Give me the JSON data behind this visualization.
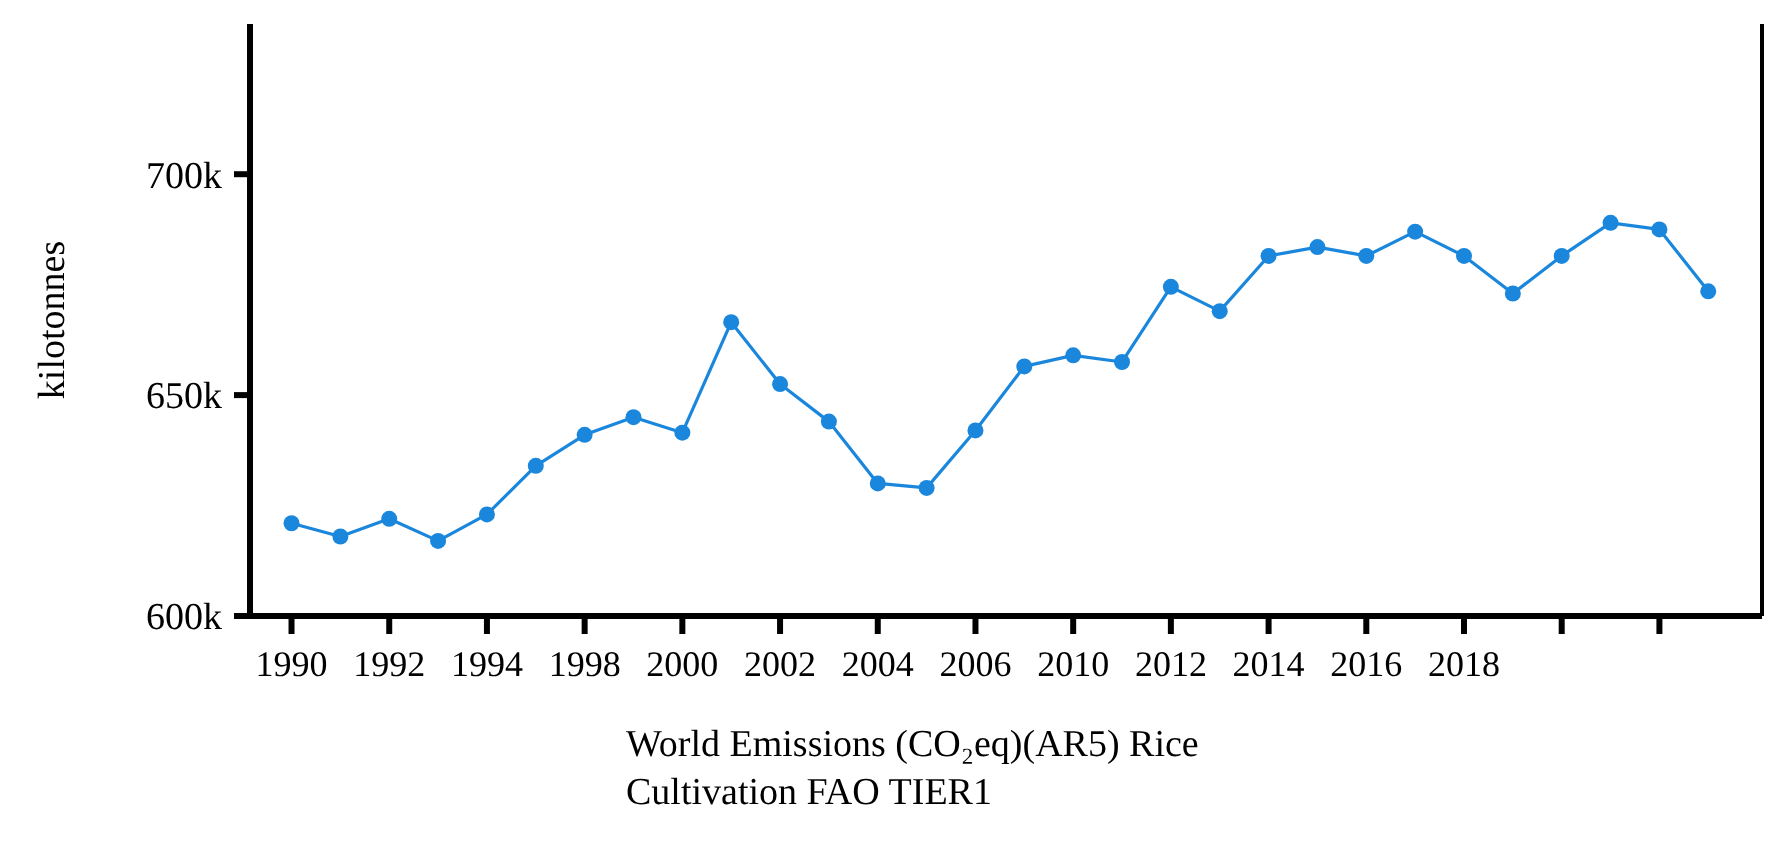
{
  "chart_data": {
    "type": "line",
    "xlabel": "World Emissions (CO₂eq)(AR5) Rice Cultivation FAO TIER1",
    "ylabel": "kilotonnes",
    "categories": [
      "1990",
      null,
      "1992",
      null,
      "1994",
      null,
      "1998",
      null,
      "2000",
      null,
      "2002",
      null,
      "2004",
      null,
      "2006",
      null,
      "2010",
      null,
      "2012",
      null,
      "2014",
      null,
      "2016",
      null,
      "2018",
      null,
      null,
      null,
      null,
      null
    ],
    "series": [
      {
        "color": "#1a87dc",
        "values": [
          621000,
          618000,
          622000,
          617000,
          623000,
          634000,
          641000,
          645000,
          641500,
          666500,
          652500,
          644000,
          630000,
          629000,
          642000,
          656500,
          659000,
          657500,
          674500,
          669000,
          681500,
          683500,
          681500,
          687000,
          681500,
          673000,
          681500,
          689000,
          687500,
          673500
        ]
      }
    ],
    "ylim": [
      600000,
      734000
    ],
    "yticks": [
      {
        "value": 600000,
        "label": "600k"
      },
      {
        "value": 650000,
        "label": "650k"
      },
      {
        "value": 700000,
        "label": "700k"
      }
    ],
    "marker": "circle",
    "line_style": "solid",
    "grid": false
  }
}
